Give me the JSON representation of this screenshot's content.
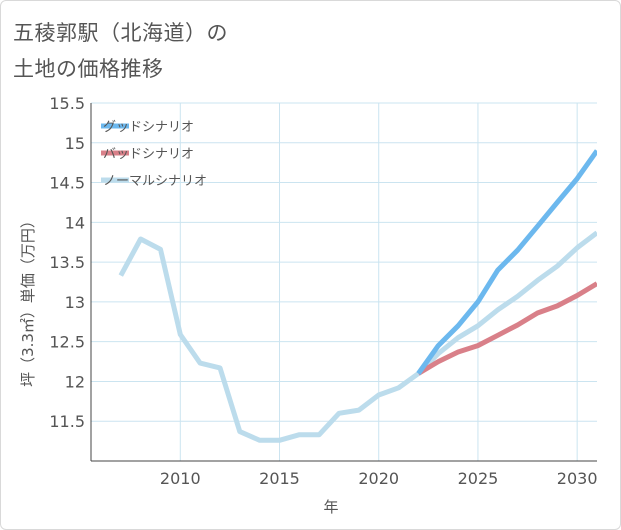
{
  "title": {
    "line1": "五稜郭駅（北海道）の",
    "line2": "土地の価格推移"
  },
  "colors": {
    "good": "#6cb8ee",
    "bad": "#d98089",
    "normal": "#bcdcec",
    "grid": "#cbe4f0",
    "axis": "#444444"
  },
  "chart_data": {
    "type": "line",
    "title": "五稜郭駅（北海道）の 土地の価格推移",
    "xlabel": "年",
    "ylabel": "坪（3.3㎡）単価（万円）",
    "xlim": [
      2005.5,
      2031
    ],
    "ylim": [
      11,
      15.5
    ],
    "x_ticks": [
      2010,
      2015,
      2020,
      2025,
      2030
    ],
    "y_ticks": [
      11.5,
      12,
      12.5,
      13,
      13.5,
      14,
      14.5,
      15,
      15.5
    ],
    "x_tick_labels": [
      "2010",
      "2015",
      "2020",
      "2025",
      "2030"
    ],
    "y_tick_labels": [
      "11.5",
      "12",
      "12.5",
      "13",
      "13.5",
      "14",
      "14.5",
      "15",
      "15.5"
    ],
    "grid": true,
    "legend_position": "top-left",
    "series": [
      {
        "name": "グッドシナリオ",
        "color": "#6cb8ee",
        "x": [
          2022,
          2023,
          2024,
          2025,
          2026,
          2027,
          2028,
          2029,
          2030,
          2031
        ],
        "y": [
          12.1,
          12.45,
          12.7,
          13.0,
          13.4,
          13.65,
          13.95,
          14.25,
          14.55,
          14.9
        ]
      },
      {
        "name": "バッドシナリオ",
        "color": "#d98089",
        "x": [
          2022,
          2023,
          2024,
          2025,
          2026,
          2027,
          2028,
          2029,
          2030,
          2031
        ],
        "y": [
          12.1,
          12.25,
          12.37,
          12.45,
          12.58,
          12.71,
          12.86,
          12.95,
          13.08,
          13.23
        ]
      },
      {
        "name": "ノーマルシナリオ",
        "color": "#bcdcec",
        "x": [
          2007,
          2008,
          2009,
          2010,
          2011,
          2012,
          2013,
          2014,
          2015,
          2016,
          2017,
          2018,
          2019,
          2020,
          2021,
          2022,
          2023,
          2024,
          2025,
          2026,
          2027,
          2028,
          2029,
          2030,
          2031
        ],
        "y": [
          13.33,
          13.79,
          13.66,
          12.59,
          12.23,
          12.17,
          11.37,
          11.26,
          11.26,
          11.33,
          11.33,
          11.6,
          11.64,
          11.83,
          11.92,
          12.1,
          12.35,
          12.55,
          12.7,
          12.9,
          13.07,
          13.27,
          13.45,
          13.68,
          13.87
        ]
      }
    ]
  }
}
